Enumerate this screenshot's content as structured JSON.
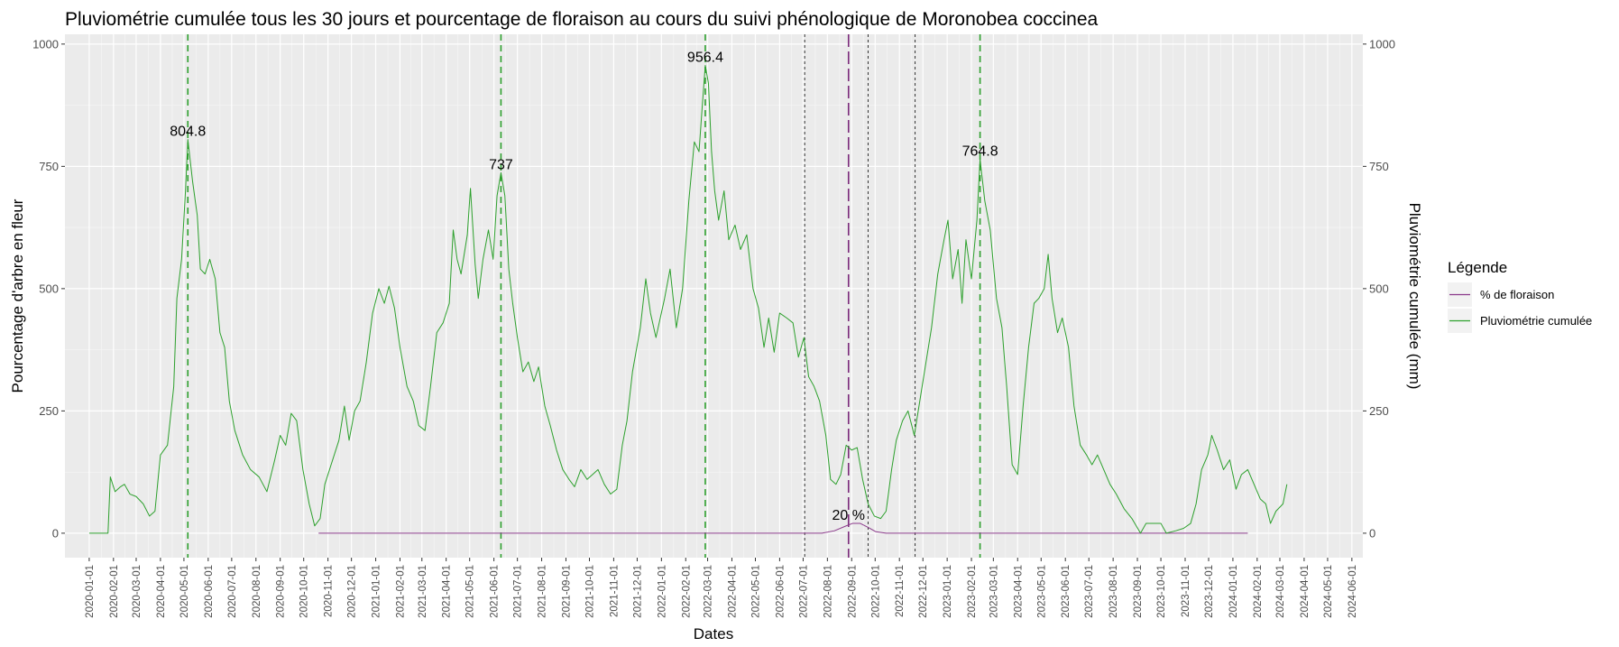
{
  "chart_data": {
    "type": "line",
    "title": "Pluviométrie cumulée tous les 30 jours et pourcentage de floraison au cours du suivi phénologique de Moronobea coccinea",
    "xlabel": "Dates",
    "ylabel_left": "Pourcentage d'arbre en fleur",
    "ylabel_right": "Pluviométrie cumulée (mm)",
    "xlim": [
      "2019-12-01",
      "2024-06-15"
    ],
    "ylim": [
      -50,
      1020
    ],
    "y_ticks": [
      0,
      250,
      500,
      750,
      1000
    ],
    "x_ticks": [
      "2020-01-01",
      "2020-02-01",
      "2020-03-01",
      "2020-04-01",
      "2020-05-01",
      "2020-06-01",
      "2020-07-01",
      "2020-08-01",
      "2020-09-01",
      "2020-10-01",
      "2020-11-01",
      "2020-12-01",
      "2021-01-01",
      "2021-02-01",
      "2021-03-01",
      "2021-04-01",
      "2021-05-01",
      "2021-06-01",
      "2021-07-01",
      "2021-08-01",
      "2021-09-01",
      "2021-10-01",
      "2021-11-01",
      "2021-12-01",
      "2022-01-01",
      "2022-02-01",
      "2022-03-01",
      "2022-04-01",
      "2022-05-01",
      "2022-06-01",
      "2022-07-01",
      "2022-08-01",
      "2022-09-01",
      "2022-10-01",
      "2022-11-01",
      "2022-12-01",
      "2023-01-01",
      "2023-02-01",
      "2023-03-01",
      "2023-04-01",
      "2023-05-01",
      "2023-06-01",
      "2023-07-01",
      "2023-08-01",
      "2023-09-01",
      "2023-10-01",
      "2023-11-01",
      "2023-12-01",
      "2024-01-01",
      "2024-02-01",
      "2024-03-01",
      "2024-04-01",
      "2024-05-01",
      "2024-06-01"
    ],
    "grid": true,
    "legend": {
      "title": "Légende",
      "position": "right"
    },
    "series": [
      {
        "name": "% de floraison",
        "color": "#8B3A8B",
        "points": [
          [
            "2020-10-20",
            0
          ],
          [
            "2022-07-25",
            0
          ],
          [
            "2022-08-10",
            5
          ],
          [
            "2022-08-25",
            15
          ],
          [
            "2022-09-02",
            20
          ],
          [
            "2022-09-12",
            20
          ],
          [
            "2022-09-22",
            12
          ],
          [
            "2022-10-02",
            3
          ],
          [
            "2022-10-15",
            0
          ],
          [
            "2024-01-20",
            0
          ]
        ]
      },
      {
        "name": "Pluviométrie cumulée",
        "color": "#2DA02D",
        "points": [
          [
            "2020-01-01",
            0
          ],
          [
            "2020-01-25",
            0
          ],
          [
            "2020-01-28",
            115
          ],
          [
            "2020-02-03",
            85
          ],
          [
            "2020-02-10",
            95
          ],
          [
            "2020-02-15",
            100
          ],
          [
            "2020-02-22",
            80
          ],
          [
            "2020-03-01",
            75
          ],
          [
            "2020-03-10",
            60
          ],
          [
            "2020-03-18",
            35
          ],
          [
            "2020-03-25",
            45
          ],
          [
            "2020-04-01",
            160
          ],
          [
            "2020-04-10",
            180
          ],
          [
            "2020-04-18",
            300
          ],
          [
            "2020-04-22",
            480
          ],
          [
            "2020-04-28",
            560
          ],
          [
            "2020-05-03",
            700
          ],
          [
            "2020-05-06",
            804.8
          ],
          [
            "2020-05-12",
            720
          ],
          [
            "2020-05-18",
            650
          ],
          [
            "2020-05-22",
            540
          ],
          [
            "2020-05-28",
            530
          ],
          [
            "2020-06-03",
            560
          ],
          [
            "2020-06-10",
            520
          ],
          [
            "2020-06-16",
            410
          ],
          [
            "2020-06-22",
            380
          ],
          [
            "2020-06-28",
            270
          ],
          [
            "2020-07-05",
            210
          ],
          [
            "2020-07-15",
            160
          ],
          [
            "2020-07-25",
            130
          ],
          [
            "2020-08-05",
            115
          ],
          [
            "2020-08-15",
            85
          ],
          [
            "2020-08-25",
            150
          ],
          [
            "2020-09-01",
            200
          ],
          [
            "2020-09-08",
            180
          ],
          [
            "2020-09-15",
            245
          ],
          [
            "2020-09-22",
            230
          ],
          [
            "2020-09-30",
            130
          ],
          [
            "2020-10-08",
            60
          ],
          [
            "2020-10-15",
            15
          ],
          [
            "2020-10-22",
            30
          ],
          [
            "2020-10-28",
            100
          ],
          [
            "2020-11-05",
            140
          ],
          [
            "2020-11-15",
            190
          ],
          [
            "2020-11-22",
            260
          ],
          [
            "2020-11-28",
            190
          ],
          [
            "2020-12-05",
            250
          ],
          [
            "2020-12-12",
            270
          ],
          [
            "2020-12-20",
            350
          ],
          [
            "2020-12-28",
            450
          ],
          [
            "2021-01-05",
            500
          ],
          [
            "2021-01-12",
            470
          ],
          [
            "2021-01-18",
            505
          ],
          [
            "2021-01-25",
            460
          ],
          [
            "2021-02-01",
            380
          ],
          [
            "2021-02-10",
            300
          ],
          [
            "2021-02-18",
            270
          ],
          [
            "2021-02-25",
            220
          ],
          [
            "2021-03-05",
            210
          ],
          [
            "2021-03-12",
            300
          ],
          [
            "2021-03-20",
            410
          ],
          [
            "2021-03-28",
            430
          ],
          [
            "2021-04-05",
            470
          ],
          [
            "2021-04-10",
            620
          ],
          [
            "2021-04-15",
            560
          ],
          [
            "2021-04-20",
            530
          ],
          [
            "2021-04-28",
            610
          ],
          [
            "2021-05-02",
            705
          ],
          [
            "2021-05-08",
            550
          ],
          [
            "2021-05-12",
            480
          ],
          [
            "2021-05-18",
            560
          ],
          [
            "2021-05-25",
            620
          ],
          [
            "2021-05-31",
            560
          ],
          [
            "2021-06-05",
            690
          ],
          [
            "2021-06-10",
            737
          ],
          [
            "2021-06-15",
            690
          ],
          [
            "2021-06-20",
            540
          ],
          [
            "2021-06-25",
            470
          ],
          [
            "2021-07-01",
            400
          ],
          [
            "2021-07-08",
            330
          ],
          [
            "2021-07-15",
            350
          ],
          [
            "2021-07-22",
            310
          ],
          [
            "2021-07-28",
            340
          ],
          [
            "2021-08-05",
            260
          ],
          [
            "2021-08-12",
            220
          ],
          [
            "2021-08-20",
            170
          ],
          [
            "2021-08-28",
            130
          ],
          [
            "2021-09-05",
            110
          ],
          [
            "2021-09-12",
            95
          ],
          [
            "2021-09-20",
            130
          ],
          [
            "2021-09-28",
            110
          ],
          [
            "2021-10-05",
            120
          ],
          [
            "2021-10-12",
            130
          ],
          [
            "2021-10-20",
            100
          ],
          [
            "2021-10-28",
            80
          ],
          [
            "2021-11-05",
            90
          ],
          [
            "2021-11-12",
            180
          ],
          [
            "2021-11-18",
            230
          ],
          [
            "2021-11-25",
            330
          ],
          [
            "2021-12-05",
            420
          ],
          [
            "2021-12-12",
            520
          ],
          [
            "2021-12-18",
            450
          ],
          [
            "2021-12-25",
            400
          ],
          [
            "2022-01-05",
            480
          ],
          [
            "2022-01-12",
            540
          ],
          [
            "2022-01-20",
            420
          ],
          [
            "2022-01-28",
            500
          ],
          [
            "2022-02-05",
            680
          ],
          [
            "2022-02-12",
            800
          ],
          [
            "2022-02-18",
            780
          ],
          [
            "2022-02-22",
            870
          ],
          [
            "2022-02-26",
            956.4
          ],
          [
            "2022-03-02",
            920
          ],
          [
            "2022-03-06",
            780
          ],
          [
            "2022-03-10",
            700
          ],
          [
            "2022-03-15",
            640
          ],
          [
            "2022-03-22",
            700
          ],
          [
            "2022-03-28",
            600
          ],
          [
            "2022-04-05",
            630
          ],
          [
            "2022-04-12",
            580
          ],
          [
            "2022-04-20",
            610
          ],
          [
            "2022-04-28",
            500
          ],
          [
            "2022-05-05",
            460
          ],
          [
            "2022-05-12",
            380
          ],
          [
            "2022-05-18",
            440
          ],
          [
            "2022-05-25",
            370
          ],
          [
            "2022-06-01",
            450
          ],
          [
            "2022-06-10",
            440
          ],
          [
            "2022-06-18",
            430
          ],
          [
            "2022-06-25",
            360
          ],
          [
            "2022-07-02",
            400
          ],
          [
            "2022-07-08",
            320
          ],
          [
            "2022-07-15",
            300
          ],
          [
            "2022-07-22",
            270
          ],
          [
            "2022-07-30",
            200
          ],
          [
            "2022-08-05",
            110
          ],
          [
            "2022-08-12",
            100
          ],
          [
            "2022-08-18",
            120
          ],
          [
            "2022-08-25",
            180
          ],
          [
            "2022-09-01",
            170
          ],
          [
            "2022-09-08",
            175
          ],
          [
            "2022-09-15",
            110
          ],
          [
            "2022-09-22",
            60
          ],
          [
            "2022-09-30",
            35
          ],
          [
            "2022-10-08",
            30
          ],
          [
            "2022-10-15",
            45
          ],
          [
            "2022-10-22",
            130
          ],
          [
            "2022-10-28",
            190
          ],
          [
            "2022-11-05",
            230
          ],
          [
            "2022-11-12",
            250
          ],
          [
            "2022-11-20",
            200
          ],
          [
            "2022-11-28",
            280
          ],
          [
            "2022-12-05",
            350
          ],
          [
            "2022-12-12",
            420
          ],
          [
            "2022-12-20",
            530
          ],
          [
            "2022-12-28",
            600
          ],
          [
            "2023-01-02",
            640
          ],
          [
            "2023-01-08",
            520
          ],
          [
            "2023-01-15",
            580
          ],
          [
            "2023-01-20",
            470
          ],
          [
            "2023-01-25",
            600
          ],
          [
            "2023-02-01",
            520
          ],
          [
            "2023-02-08",
            640
          ],
          [
            "2023-02-12",
            764.8
          ],
          [
            "2023-02-18",
            680
          ],
          [
            "2023-02-25",
            620
          ],
          [
            "2023-03-05",
            480
          ],
          [
            "2023-03-12",
            420
          ],
          [
            "2023-03-18",
            300
          ],
          [
            "2023-03-25",
            140
          ],
          [
            "2023-04-01",
            120
          ],
          [
            "2023-04-08",
            260
          ],
          [
            "2023-04-15",
            380
          ],
          [
            "2023-04-22",
            470
          ],
          [
            "2023-04-28",
            480
          ],
          [
            "2023-05-05",
            500
          ],
          [
            "2023-05-10",
            570
          ],
          [
            "2023-05-15",
            480
          ],
          [
            "2023-05-22",
            410
          ],
          [
            "2023-05-28",
            440
          ],
          [
            "2023-06-05",
            380
          ],
          [
            "2023-06-12",
            260
          ],
          [
            "2023-06-20",
            180
          ],
          [
            "2023-06-28",
            160
          ],
          [
            "2023-07-05",
            140
          ],
          [
            "2023-07-12",
            160
          ],
          [
            "2023-07-20",
            130
          ],
          [
            "2023-07-28",
            100
          ],
          [
            "2023-08-05",
            80
          ],
          [
            "2023-08-15",
            50
          ],
          [
            "2023-08-25",
            30
          ],
          [
            "2023-09-05",
            0
          ],
          [
            "2023-09-12",
            20
          ],
          [
            "2023-09-22",
            20
          ],
          [
            "2023-10-01",
            20
          ],
          [
            "2023-10-08",
            0
          ],
          [
            "2023-10-20",
            5
          ],
          [
            "2023-10-30",
            10
          ],
          [
            "2023-11-08",
            20
          ],
          [
            "2023-11-15",
            60
          ],
          [
            "2023-11-22",
            130
          ],
          [
            "2023-11-30",
            160
          ],
          [
            "2023-12-05",
            200
          ],
          [
            "2023-12-12",
            170
          ],
          [
            "2023-12-20",
            130
          ],
          [
            "2023-12-28",
            150
          ],
          [
            "2024-01-05",
            90
          ],
          [
            "2024-01-12",
            120
          ],
          [
            "2024-01-20",
            130
          ],
          [
            "2024-01-28",
            100
          ],
          [
            "2024-02-05",
            70
          ],
          [
            "2024-02-12",
            60
          ],
          [
            "2024-02-18",
            20
          ],
          [
            "2024-02-25",
            45
          ],
          [
            "2024-03-05",
            60
          ],
          [
            "2024-03-10",
            100
          ]
        ]
      }
    ],
    "vlines": [
      {
        "x": "2020-05-06",
        "style": "dashed",
        "color": "#2DA02D"
      },
      {
        "x": "2021-06-10",
        "style": "dashed",
        "color": "#2DA02D"
      },
      {
        "x": "2022-02-26",
        "style": "dashed",
        "color": "#2DA02D"
      },
      {
        "x": "2023-02-12",
        "style": "dashed",
        "color": "#2DA02D"
      },
      {
        "x": "2022-07-03",
        "style": "dotted",
        "color": "#333333"
      },
      {
        "x": "2022-09-22",
        "style": "dotted",
        "color": "#333333"
      },
      {
        "x": "2022-11-21",
        "style": "dotted",
        "color": "#333333"
      },
      {
        "x": "2022-08-28",
        "style": "longdash",
        "color": "#7A2A7A"
      }
    ],
    "annotations": [
      {
        "text": "804.8",
        "x": "2020-05-06",
        "y": 804.8
      },
      {
        "text": "737",
        "x": "2021-06-10",
        "y": 737
      },
      {
        "text": "956.4",
        "x": "2022-02-26",
        "y": 956.4
      },
      {
        "text": "764.8",
        "x": "2023-02-12",
        "y": 764.8
      },
      {
        "text": "20 %",
        "x": "2022-08-28",
        "y": 20
      }
    ]
  }
}
